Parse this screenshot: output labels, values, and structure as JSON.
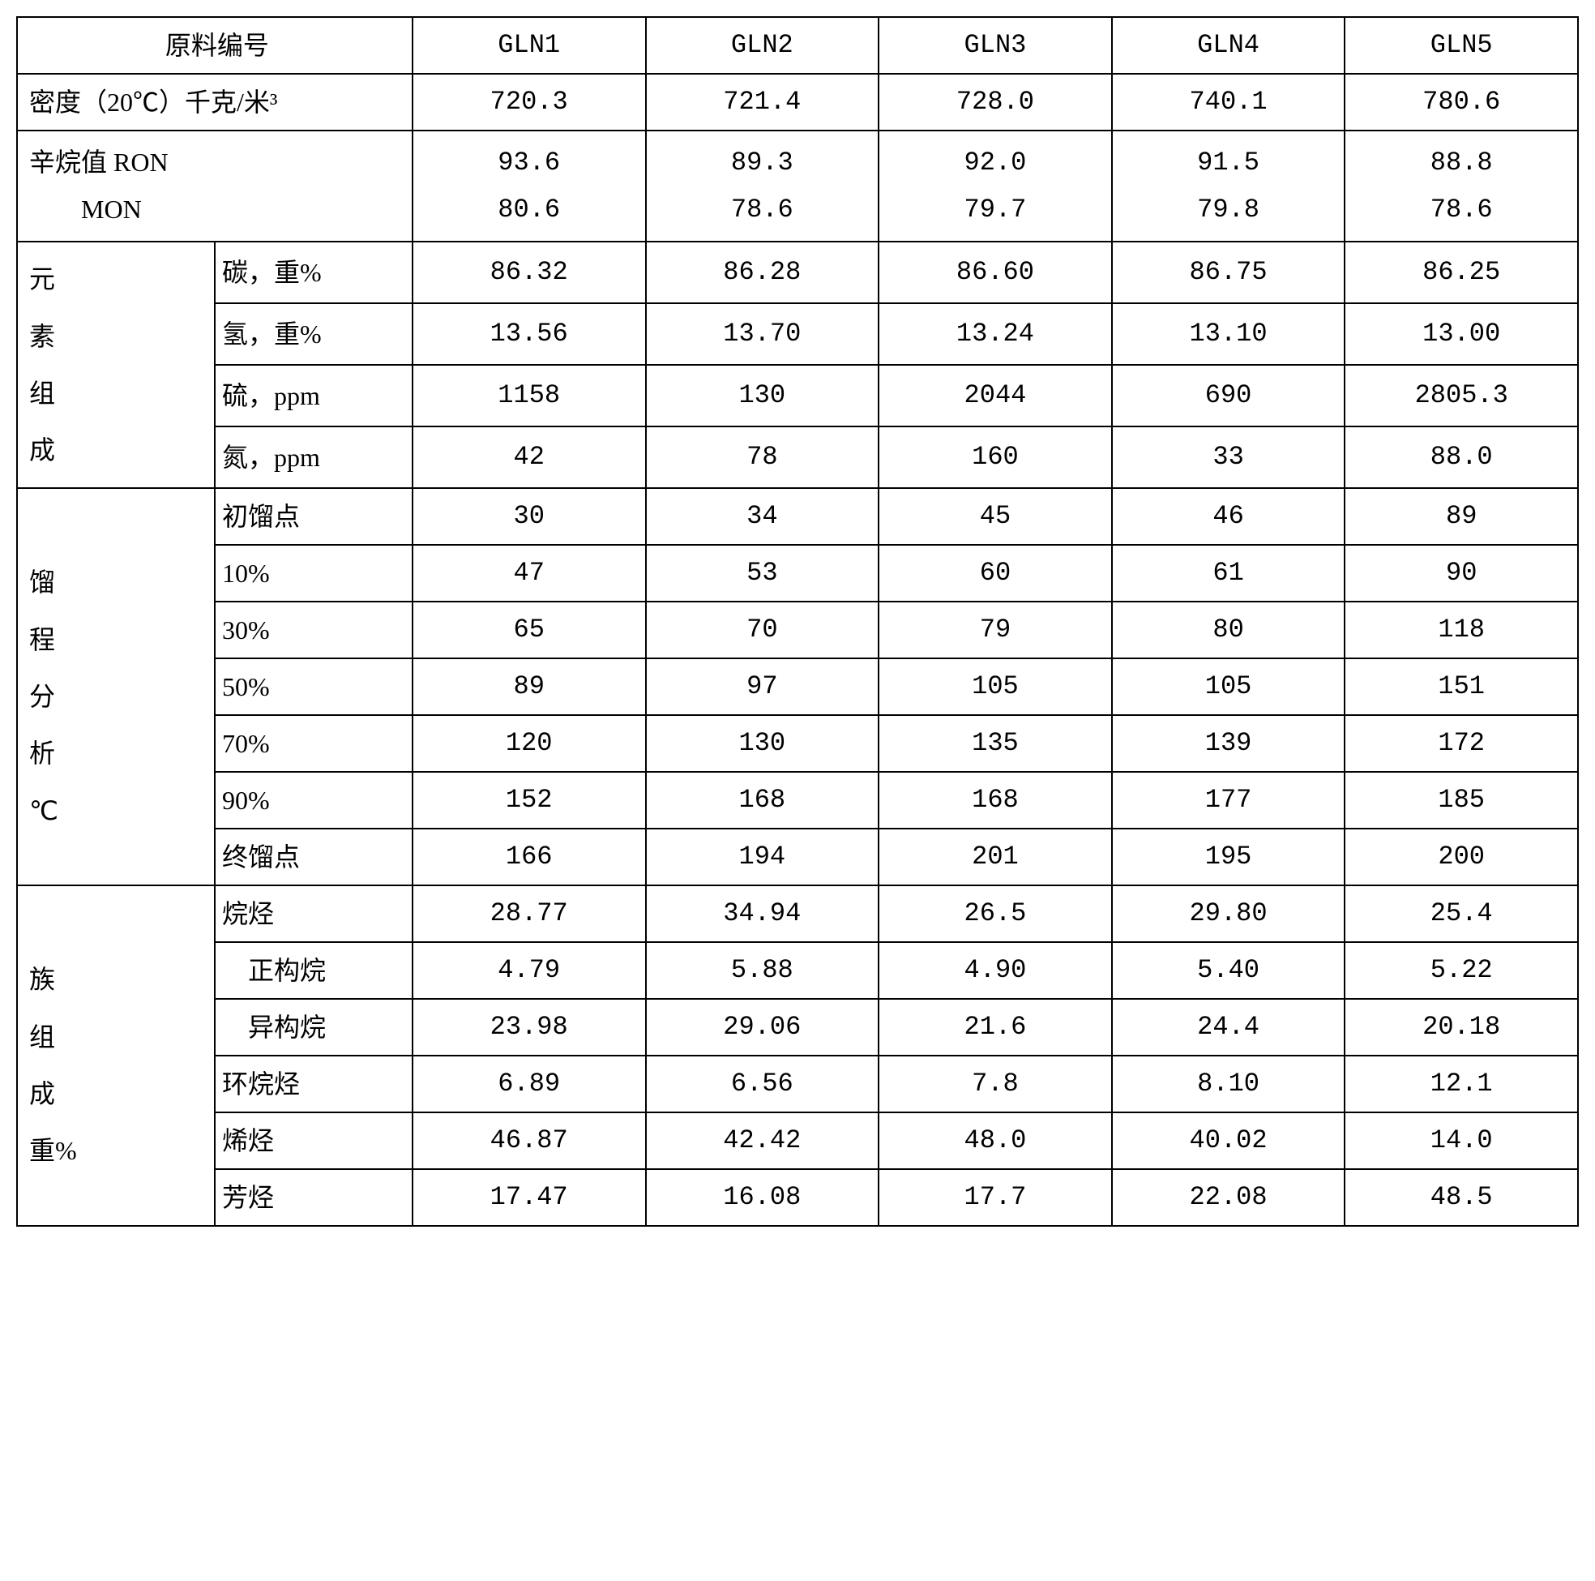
{
  "header": {
    "row_label": "原料编号",
    "cols": [
      "GLN1",
      "GLN2",
      "GLN3",
      "GLN4",
      "GLN5"
    ]
  },
  "density": {
    "label": "密度（20℃）千克/米³",
    "values": [
      "720.3",
      "721.4",
      "728.0",
      "740.1",
      "780.6"
    ]
  },
  "octane": {
    "label_ron": "辛烷值  RON",
    "label_mon": "MON",
    "ron": [
      "93.6",
      "89.3",
      "92.0",
      "91.5",
      "88.8"
    ],
    "mon": [
      "80.6",
      "78.6",
      "79.7",
      "79.8",
      "78.6"
    ]
  },
  "elemental": {
    "group_label": "元素组成",
    "rows": [
      {
        "label": "碳，重%",
        "values": [
          "86.32",
          "86.28",
          "86.60",
          "86.75",
          "86.25"
        ]
      },
      {
        "label": "氢，重%",
        "values": [
          "13.56",
          "13.70",
          "13.24",
          "13.10",
          "13.00"
        ]
      },
      {
        "label": "硫，ppm",
        "values": [
          "1158",
          "130",
          "2044",
          "690",
          "2805.3"
        ]
      },
      {
        "label": "氮，ppm",
        "values": [
          "42",
          "78",
          "160",
          "33",
          "88.0"
        ]
      }
    ]
  },
  "distillation": {
    "group_label": "馏程分析℃",
    "rows": [
      {
        "label": "初馏点",
        "values": [
          "30",
          "34",
          "45",
          "46",
          "89"
        ]
      },
      {
        "label": "10%",
        "values": [
          "47",
          "53",
          "60",
          "61",
          "90"
        ]
      },
      {
        "label": "30%",
        "values": [
          "65",
          "70",
          "79",
          "80",
          "118"
        ]
      },
      {
        "label": "50%",
        "values": [
          "89",
          "97",
          "105",
          "105",
          "151"
        ]
      },
      {
        "label": "70%",
        "values": [
          "120",
          "130",
          "135",
          "139",
          "172"
        ]
      },
      {
        "label": "90%",
        "values": [
          "152",
          "168",
          "168",
          "177",
          "185"
        ]
      },
      {
        "label": "终馏点",
        "values": [
          "166",
          "194",
          "201",
          "195",
          "200"
        ]
      }
    ]
  },
  "family": {
    "group_label": "族组成重%",
    "rows": [
      {
        "label": "烷烃",
        "indent": false,
        "values": [
          "28.77",
          "34.94",
          "26.5",
          "29.80",
          "25.4"
        ]
      },
      {
        "label": "正构烷",
        "indent": true,
        "values": [
          "4.79",
          "5.88",
          "4.90",
          "5.40",
          "5.22"
        ]
      },
      {
        "label": "异构烷",
        "indent": true,
        "values": [
          "23.98",
          "29.06",
          "21.6",
          "24.4",
          "20.18"
        ]
      },
      {
        "label": "环烷烃",
        "indent": false,
        "values": [
          "6.89",
          "6.56",
          "7.8",
          "8.10",
          "12.1"
        ]
      },
      {
        "label": "烯烃",
        "indent": false,
        "values": [
          "46.87",
          "42.42",
          "48.0",
          "40.02",
          "14.0"
        ]
      },
      {
        "label": "芳烃",
        "indent": false,
        "values": [
          "17.47",
          "16.08",
          "17.7",
          "22.08",
          "48.5"
        ]
      }
    ]
  }
}
